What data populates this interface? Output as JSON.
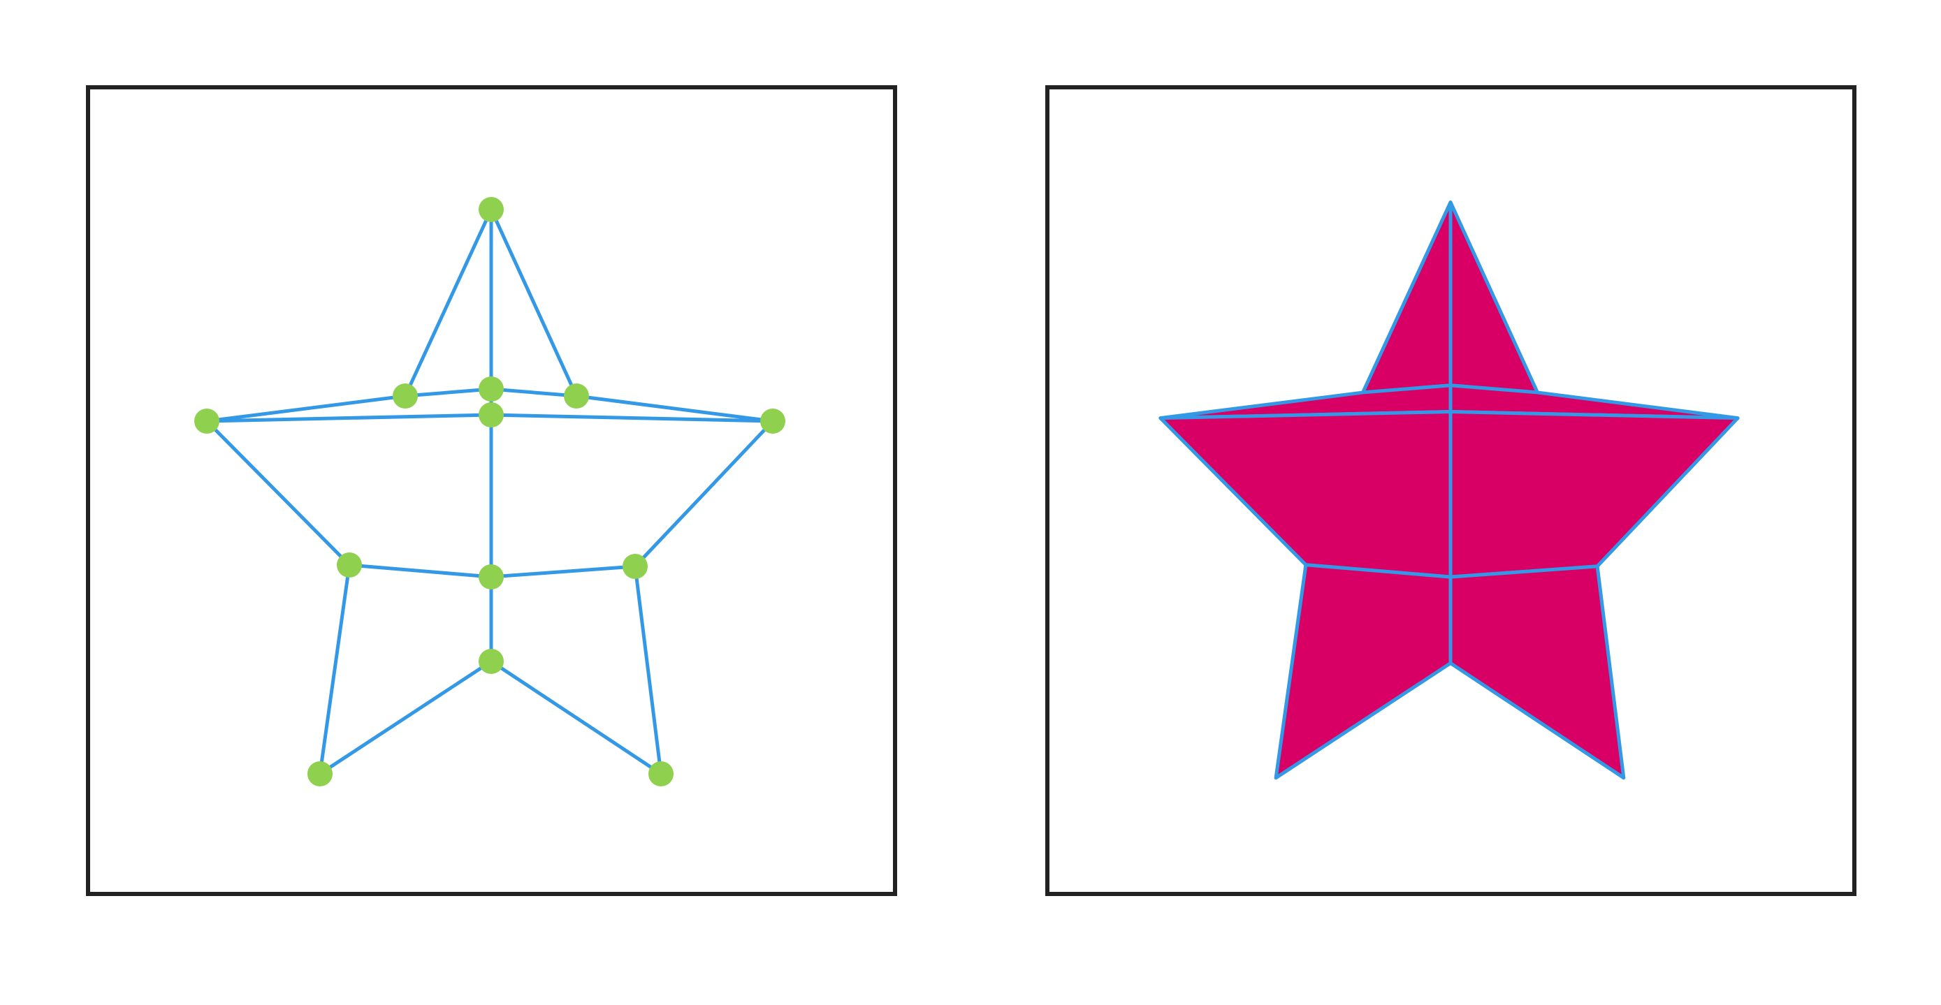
{
  "colors": {
    "background": "#ffffff",
    "frame": "#222222",
    "edge": "#3399e6",
    "vertex": "#8fd14f",
    "fill": "#d80064"
  },
  "panels": [
    {
      "id": "wireframe",
      "mode": "vertices-and-edges"
    },
    {
      "id": "filled",
      "mode": "filled-faces"
    }
  ]
}
